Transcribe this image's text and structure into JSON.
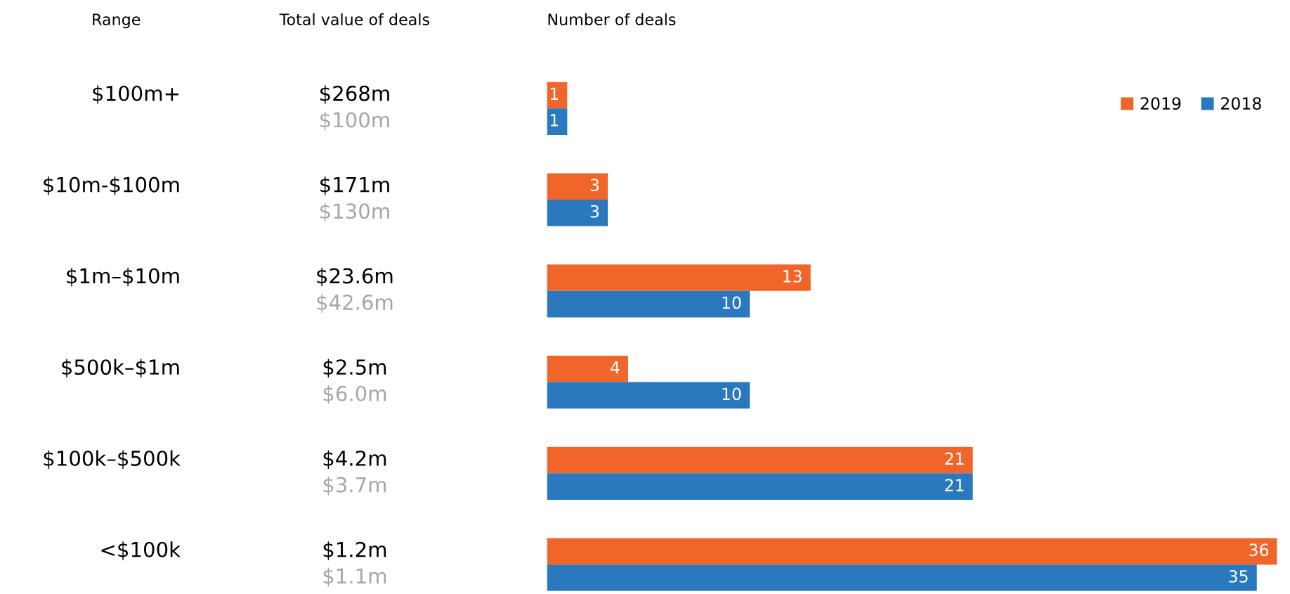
{
  "chart_data": {
    "type": "bar",
    "orientation": "horizontal",
    "title": "Number of deals",
    "ylabel": "Range",
    "categories": [
      "$100m+",
      "$10m-$100m",
      "$1m–$10m",
      "$500k–$1m",
      "$100k–$500k",
      "<$100k"
    ],
    "series": [
      {
        "name": "2019",
        "color": "#f0652a",
        "values": [
          1,
          3,
          13,
          4,
          21,
          36
        ]
      },
      {
        "name": "2018",
        "color": "#2a78bd",
        "values": [
          1,
          3,
          10,
          10,
          21,
          35
        ]
      }
    ],
    "data_labels": true,
    "legend": "top right",
    "annotations": [
      "Total value of deals",
      "$268m",
      "$100m",
      "$171m",
      "$130m",
      "$23.6m",
      "$42.6m",
      "$2.5m",
      "$6.0m",
      "$4.2m",
      "$3.7m",
      "$1.2m",
      "$1.1m"
    ]
  }
}
